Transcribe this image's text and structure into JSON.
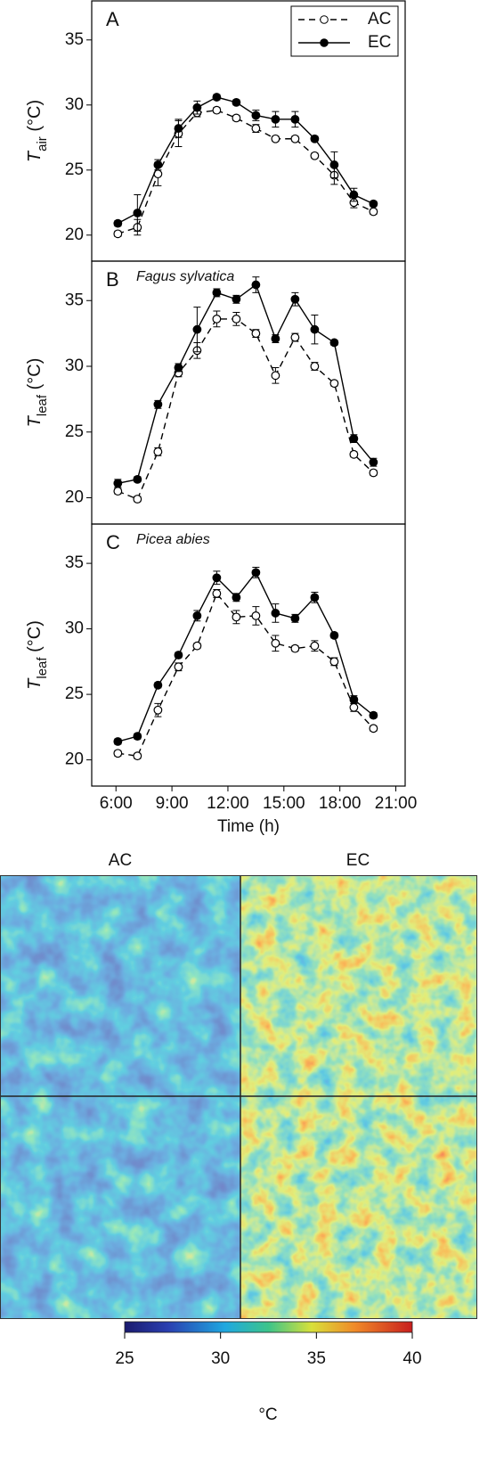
{
  "chart_data": [
    {
      "type": "line",
      "panel": "A",
      "xlim": [
        4.7,
        21.5
      ],
      "ylim": [
        18,
        38
      ],
      "yticks": [
        20,
        25,
        30,
        35
      ],
      "ylabel": {
        "symbol": "T",
        "subscript": "air",
        "unit": " (°C)"
      },
      "legend": "upper right",
      "x": [
        6.1,
        7.15,
        8.25,
        9.35,
        10.35,
        11.4,
        12.45,
        13.5,
        14.55,
        15.6,
        16.65,
        17.7,
        18.75,
        19.8
      ],
      "series": [
        {
          "name": "AC",
          "color": "#000000",
          "marker": "open",
          "dashed": true,
          "values": [
            20.1,
            20.6,
            24.7,
            27.8,
            29.4,
            29.6,
            29.0,
            28.2,
            27.4,
            27.4,
            26.1,
            24.6,
            22.5,
            21.8
          ],
          "errors": [
            0.2,
            0.6,
            0.9,
            1.0,
            0.3,
            0.2,
            0.2,
            0.3,
            0.2,
            0.2,
            0.2,
            0.7,
            0.4,
            0.2
          ]
        },
        {
          "name": "EC",
          "color": "#000000",
          "marker": "filled",
          "dashed": false,
          "values": [
            20.9,
            21.7,
            25.4,
            28.2,
            29.8,
            30.6,
            30.2,
            29.2,
            28.9,
            28.9,
            27.4,
            25.4,
            23.1,
            22.4
          ],
          "errors": [
            0.2,
            1.4,
            0.4,
            0.7,
            0.5,
            0.2,
            0.2,
            0.4,
            0.6,
            0.6,
            0.2,
            1.0,
            0.5,
            0.2
          ]
        }
      ]
    },
    {
      "type": "line",
      "panel": "B",
      "subtitle": "Fagus sylvatica",
      "xlim": [
        4.7,
        21.5
      ],
      "ylim": [
        18,
        38
      ],
      "yticks": [
        20,
        25,
        30,
        35
      ],
      "ylabel": {
        "symbol": "T",
        "subscript": "leaf",
        "unit": " (°C)"
      },
      "x": [
        6.1,
        7.15,
        8.25,
        9.35,
        10.35,
        11.4,
        12.45,
        13.5,
        14.55,
        15.6,
        16.65,
        17.7,
        18.75,
        19.8
      ],
      "series": [
        {
          "color": "#000000",
          "marker": "open",
          "dashed": true,
          "values": [
            20.5,
            19.9,
            23.5,
            29.5,
            31.2,
            33.6,
            33.6,
            32.5,
            29.3,
            32.2,
            30.0,
            28.7,
            23.3,
            21.9
          ],
          "errors": [
            0.2,
            0.2,
            0.3,
            0.3,
            0.6,
            0.6,
            0.5,
            0.3,
            0.6,
            0.3,
            0.3,
            0.2,
            0.2,
            0.2
          ]
        },
        {
          "color": "#000000",
          "marker": "filled",
          "dashed": false,
          "values": [
            21.1,
            21.4,
            27.1,
            29.9,
            32.8,
            35.6,
            35.1,
            36.2,
            32.1,
            35.1,
            32.8,
            31.8,
            24.5,
            22.7
          ],
          "errors": [
            0.3,
            0.2,
            0.3,
            0.3,
            1.7,
            0.3,
            0.3,
            0.6,
            0.3,
            0.5,
            1.1,
            0.2,
            0.3,
            0.3
          ]
        }
      ]
    },
    {
      "type": "line",
      "panel": "C",
      "subtitle": "Picea abies",
      "xlim": [
        4.7,
        21.5
      ],
      "ylim": [
        18,
        38
      ],
      "yticks": [
        20,
        25,
        30,
        35
      ],
      "ylabel": {
        "symbol": "T",
        "subscript": "leaf",
        "unit": " (°C)"
      },
      "xlabel": "Time (h)",
      "xticks": [
        {
          "value": 6,
          "label": "6:00"
        },
        {
          "value": 9,
          "label": "9:00"
        },
        {
          "value": 12,
          "label": "12:00"
        },
        {
          "value": 15,
          "label": "15:00"
        },
        {
          "value": 18,
          "label": "18:00"
        },
        {
          "value": 21,
          "label": "21:00"
        }
      ],
      "x": [
        6.1,
        7.15,
        8.25,
        9.35,
        10.35,
        11.4,
        12.45,
        13.5,
        14.55,
        15.6,
        16.65,
        17.7,
        18.75,
        19.8
      ],
      "series": [
        {
          "color": "#000000",
          "marker": "open",
          "dashed": true,
          "values": [
            20.5,
            20.3,
            23.8,
            27.1,
            28.7,
            32.7,
            30.9,
            31.0,
            28.9,
            28.5,
            28.7,
            27.5,
            24.0,
            22.4
          ],
          "errors": [
            0.2,
            0.2,
            0.5,
            0.3,
            0.2,
            0.3,
            0.5,
            0.7,
            0.6,
            0.2,
            0.4,
            0.3,
            0.3,
            0.2
          ]
        },
        {
          "color": "#000000",
          "marker": "filled",
          "dashed": false,
          "values": [
            21.4,
            21.8,
            25.7,
            28.0,
            31.0,
            33.9,
            32.4,
            34.3,
            31.2,
            30.8,
            32.4,
            29.5,
            24.6,
            23.4
          ],
          "errors": [
            0.2,
            0.2,
            0.2,
            0.2,
            0.4,
            0.5,
            0.3,
            0.4,
            0.7,
            0.3,
            0.4,
            0.2,
            0.3,
            0.2
          ]
        }
      ]
    }
  ],
  "thermal": {
    "columns": [
      "AC",
      "EC"
    ],
    "colorbar": {
      "lim": [
        25,
        40
      ],
      "ticks": [
        25,
        30,
        35,
        40
      ],
      "label": "°C"
    }
  }
}
